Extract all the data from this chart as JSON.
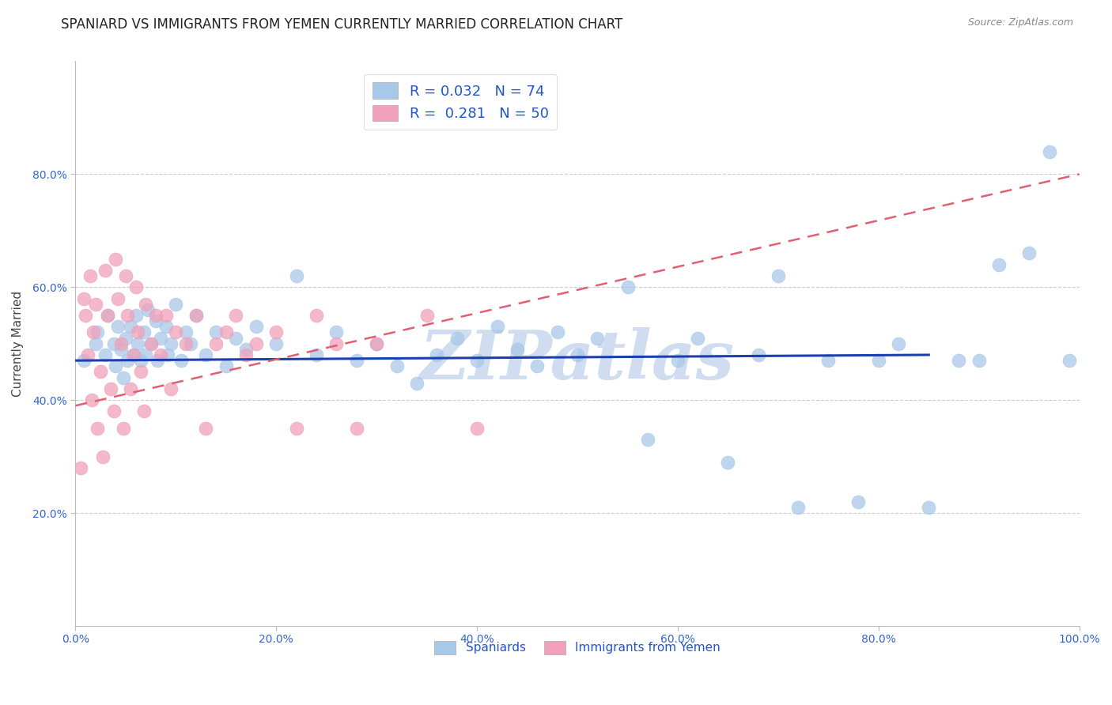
{
  "title": "SPANIARD VS IMMIGRANTS FROM YEMEN CURRENTLY MARRIED CORRELATION CHART",
  "source_text": "Source: ZipAtlas.com",
  "ylabel": "Currently Married",
  "legend_labels": [
    "Spaniards",
    "Immigrants from Yemen"
  ],
  "r_spaniards": 0.032,
  "n_spaniards": 74,
  "r_yemen": 0.281,
  "n_yemen": 50,
  "color_spaniards": "#a8c8e8",
  "color_yemen": "#f0a0b8",
  "trend_color_spaniards": "#1a40b0",
  "trend_color_yemen": "#e06070",
  "watermark_text": "ZIPatlas",
  "watermark_color": "#d0dcf0",
  "background_color": "#ffffff",
  "grid_color": "#cccccc",
  "title_fontsize": 12,
  "axis_label_fontsize": 11,
  "tick_fontsize": 10,
  "xlim": [
    0.0,
    1.0
  ],
  "ylim": [
    0.0,
    1.0
  ],
  "xticks": [
    0.0,
    0.2,
    0.4,
    0.6,
    0.8,
    1.0
  ],
  "yticks": [
    0.2,
    0.4,
    0.6,
    0.8
  ],
  "sp_x": [
    0.008,
    0.02,
    0.022,
    0.03,
    0.032,
    0.038,
    0.04,
    0.042,
    0.045,
    0.048,
    0.05,
    0.052,
    0.055,
    0.058,
    0.06,
    0.062,
    0.065,
    0.068,
    0.07,
    0.072,
    0.075,
    0.08,
    0.082,
    0.085,
    0.09,
    0.092,
    0.095,
    0.1,
    0.105,
    0.11,
    0.115,
    0.12,
    0.13,
    0.14,
    0.15,
    0.16,
    0.17,
    0.18,
    0.2,
    0.22,
    0.24,
    0.26,
    0.28,
    0.3,
    0.32,
    0.34,
    0.36,
    0.38,
    0.4,
    0.42,
    0.44,
    0.46,
    0.48,
    0.5,
    0.52,
    0.55,
    0.57,
    0.6,
    0.62,
    0.65,
    0.68,
    0.7,
    0.72,
    0.75,
    0.78,
    0.8,
    0.82,
    0.85,
    0.88,
    0.9,
    0.92,
    0.95,
    0.97,
    0.99
  ],
  "sp_y": [
    0.47,
    0.5,
    0.52,
    0.48,
    0.55,
    0.5,
    0.46,
    0.53,
    0.49,
    0.44,
    0.51,
    0.47,
    0.53,
    0.48,
    0.55,
    0.5,
    0.47,
    0.52,
    0.48,
    0.56,
    0.5,
    0.54,
    0.47,
    0.51,
    0.53,
    0.48,
    0.5,
    0.57,
    0.47,
    0.52,
    0.5,
    0.55,
    0.48,
    0.52,
    0.46,
    0.51,
    0.49,
    0.53,
    0.5,
    0.62,
    0.48,
    0.52,
    0.47,
    0.5,
    0.46,
    0.43,
    0.48,
    0.51,
    0.47,
    0.53,
    0.49,
    0.46,
    0.52,
    0.48,
    0.51,
    0.6,
    0.33,
    0.47,
    0.51,
    0.29,
    0.48,
    0.62,
    0.21,
    0.47,
    0.22,
    0.47,
    0.5,
    0.21,
    0.47,
    0.47,
    0.64,
    0.66,
    0.84,
    0.47
  ],
  "ye_x": [
    0.005,
    0.008,
    0.01,
    0.012,
    0.015,
    0.016,
    0.018,
    0.02,
    0.022,
    0.025,
    0.027,
    0.03,
    0.032,
    0.035,
    0.038,
    0.04,
    0.042,
    0.045,
    0.048,
    0.05,
    0.052,
    0.055,
    0.058,
    0.06,
    0.062,
    0.065,
    0.068,
    0.07,
    0.075,
    0.08,
    0.085,
    0.09,
    0.095,
    0.1,
    0.11,
    0.12,
    0.13,
    0.14,
    0.15,
    0.16,
    0.17,
    0.18,
    0.2,
    0.22,
    0.24,
    0.26,
    0.28,
    0.3,
    0.35,
    0.4
  ],
  "ye_y": [
    0.28,
    0.58,
    0.55,
    0.48,
    0.62,
    0.4,
    0.52,
    0.57,
    0.35,
    0.45,
    0.3,
    0.63,
    0.55,
    0.42,
    0.38,
    0.65,
    0.58,
    0.5,
    0.35,
    0.62,
    0.55,
    0.42,
    0.48,
    0.6,
    0.52,
    0.45,
    0.38,
    0.57,
    0.5,
    0.55,
    0.48,
    0.55,
    0.42,
    0.52,
    0.5,
    0.55,
    0.35,
    0.5,
    0.52,
    0.55,
    0.48,
    0.5,
    0.52,
    0.35,
    0.55,
    0.5,
    0.35,
    0.5,
    0.55,
    0.35
  ],
  "sp_trend_x": [
    0.0,
    0.85
  ],
  "sp_trend_y": [
    0.47,
    0.48
  ],
  "ye_trend_x": [
    0.0,
    1.0
  ],
  "ye_trend_y": [
    0.39,
    0.8
  ]
}
